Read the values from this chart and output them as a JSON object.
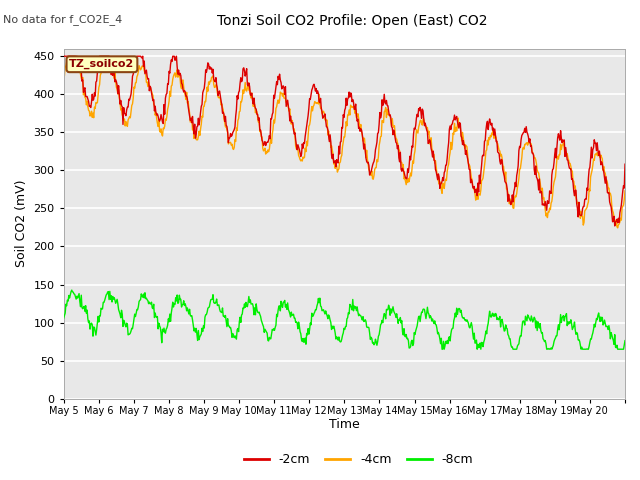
{
  "title": "Tonzi Soil CO2 Profile: Open (East) CO2",
  "subtitle": "No data for f_CO2E_4",
  "ylabel": "Soil CO2 (mV)",
  "xlabel": "Time",
  "legend_label": "TZ_soilco2",
  "ylim": [
    0,
    460
  ],
  "yticks": [
    0,
    50,
    100,
    150,
    200,
    250,
    300,
    350,
    400,
    450
  ],
  "xtick_labels": [
    "May 5",
    "May 6",
    "May 7",
    "May 8",
    "May 9",
    "May 10",
    "May 11",
    "May 12",
    "May 13",
    "May 14",
    "May 15",
    "May 16",
    "May 17",
    "May 18",
    "May 19",
    "May 20"
  ],
  "color_2cm": "#DD0000",
  "color_4cm": "#FFA500",
  "color_8cm": "#00EE00",
  "fig_bg": "#FFFFFF",
  "axes_bg": "#E8E8E8",
  "legend_box_facecolor": "#FFFFC0",
  "legend_box_edgecolor": "#8B4513",
  "legend_text_color": "#8B0000",
  "subtitle_color": "#404040",
  "line_width": 1.0,
  "grid_color": "#FFFFFF",
  "n_days": 16,
  "pts_per_day": 48
}
